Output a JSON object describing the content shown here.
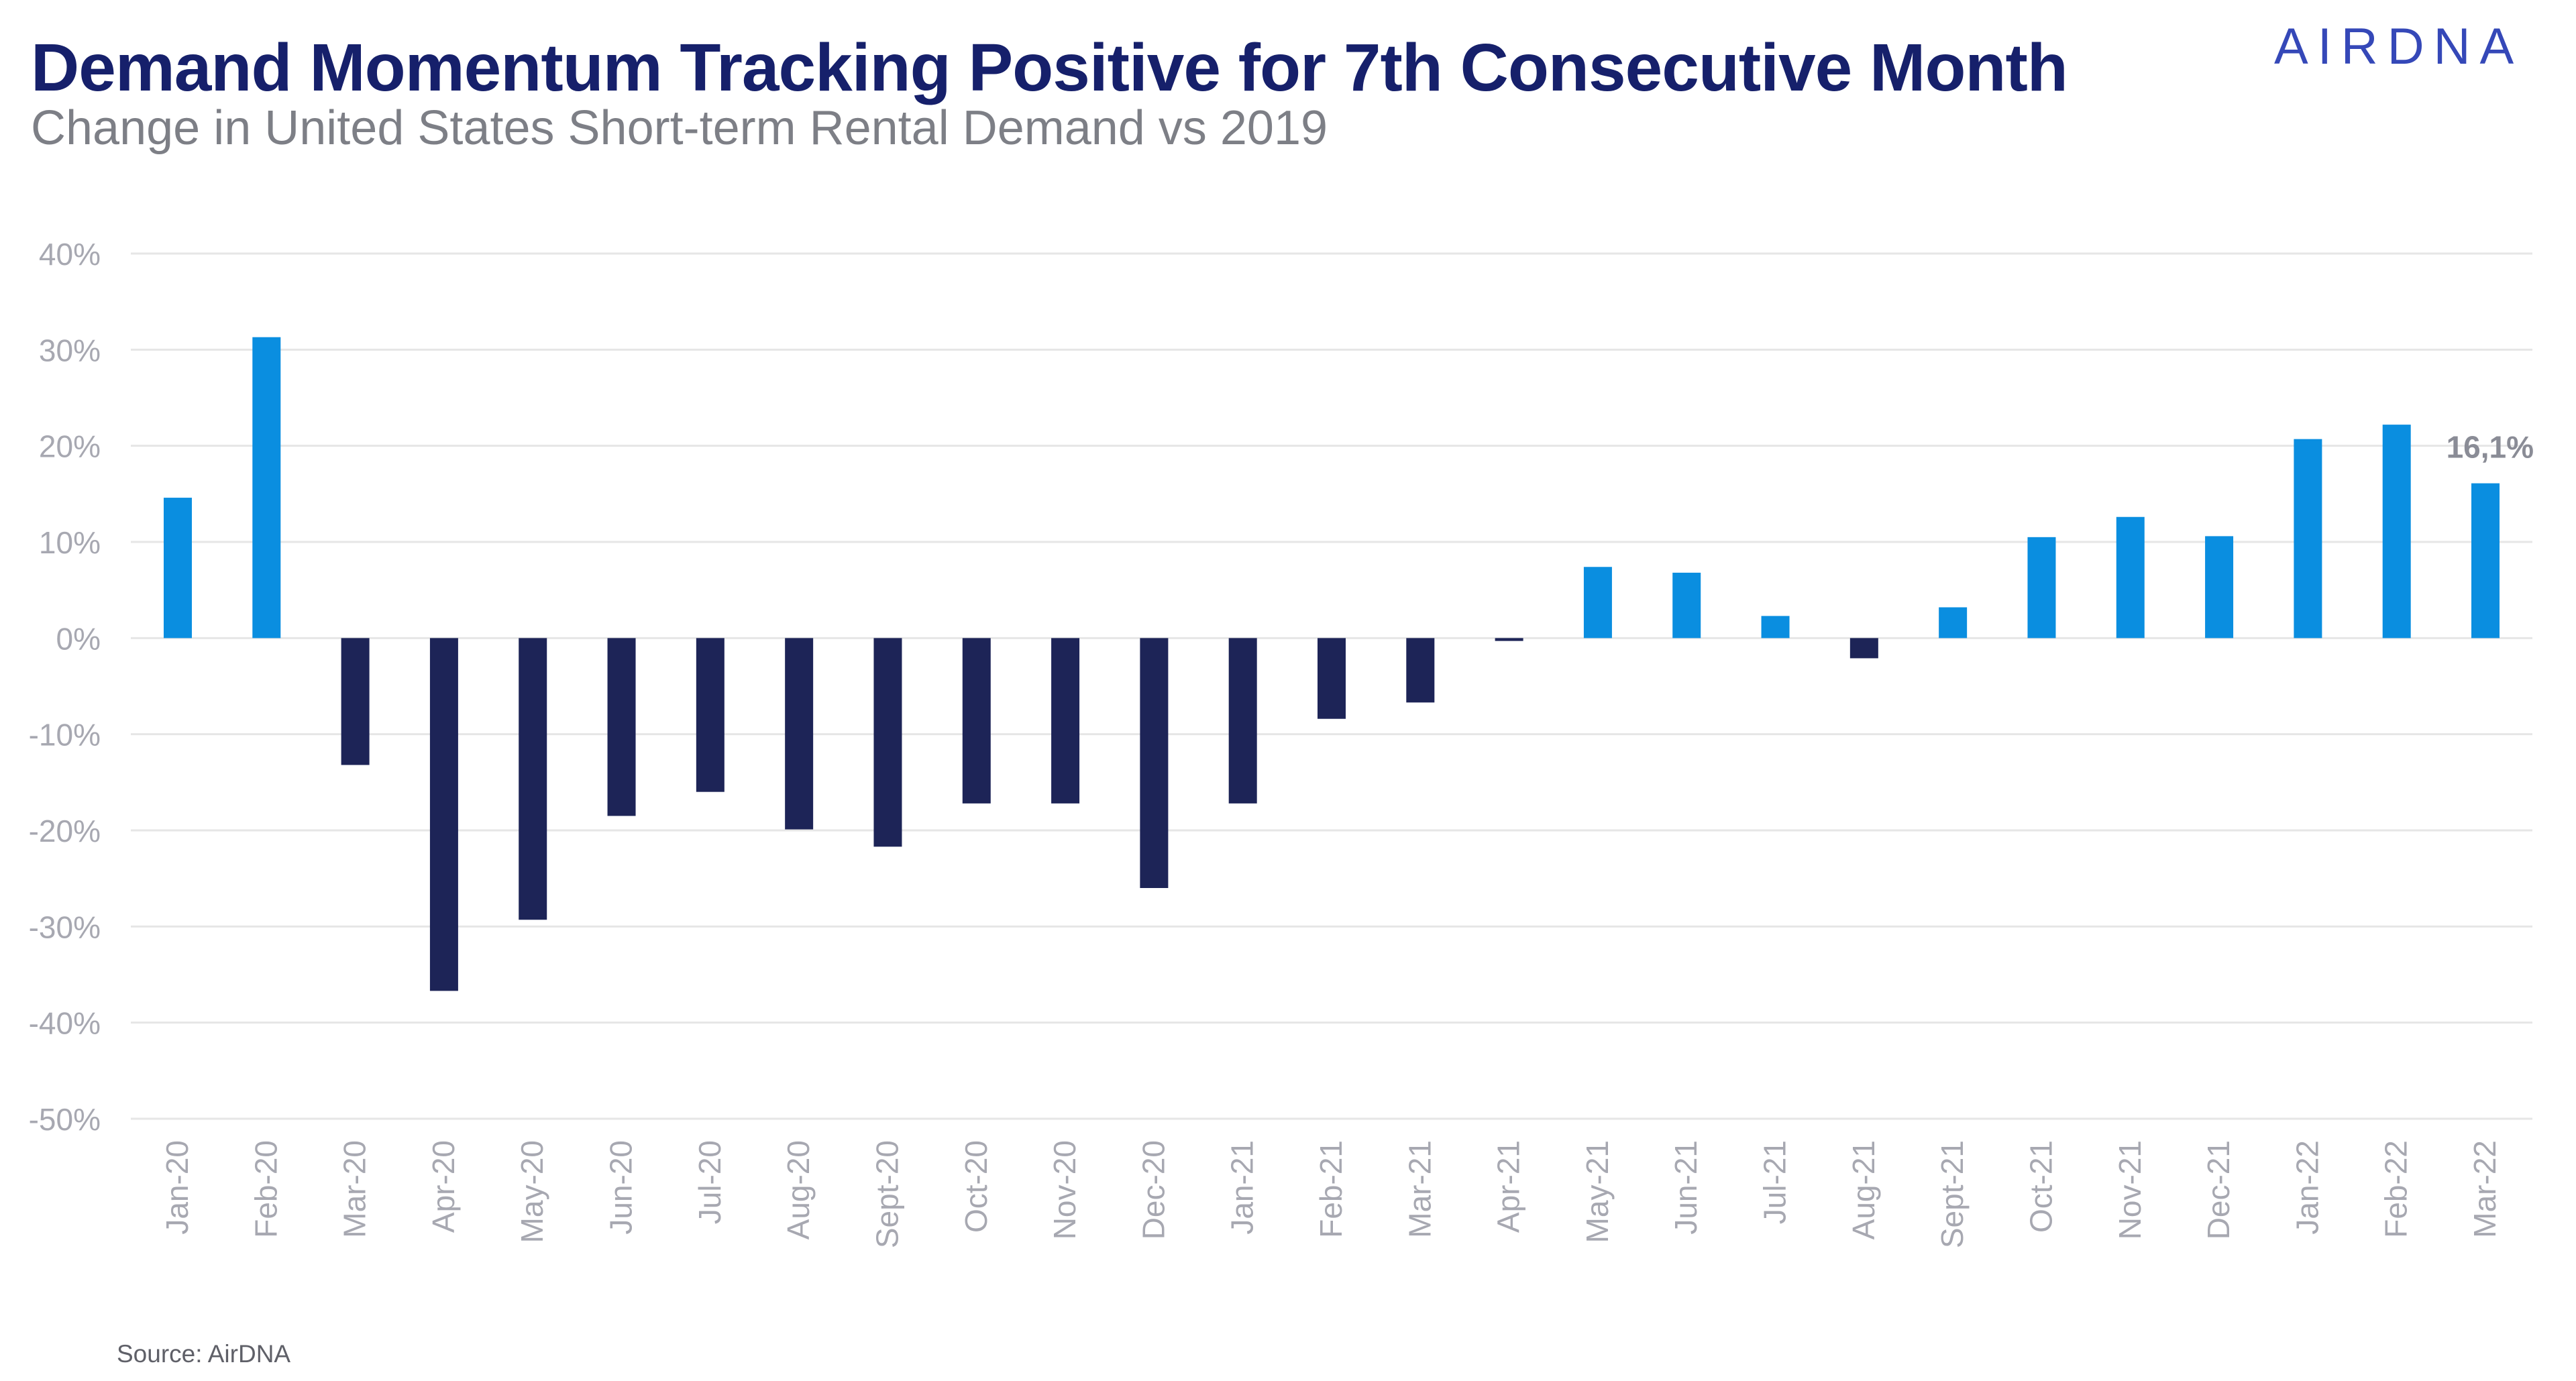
{
  "logo_text": "AIRDNA",
  "chart_data": {
    "type": "bar",
    "title": "Demand Momentum Tracking Positive for 7th Consecutive Month",
    "subtitle": "Change in United States Short-term Rental Demand vs 2019",
    "source": "Source: AirDNA",
    "categories": [
      "Jan-20",
      "Feb-20",
      "Mar-20",
      "Apr-20",
      "May-20",
      "Jun-20",
      "Jul-20",
      "Aug-20",
      "Sept-20",
      "Oct-20",
      "Nov-20",
      "Dec-20",
      "Jan-21",
      "Feb-21",
      "Mar-21",
      "Apr-21",
      "May-21",
      "Jun-21",
      "Jul-21",
      "Aug-21",
      "Sept-21",
      "Oct-21",
      "Nov-21",
      "Dec-21",
      "Jan-22",
      "Feb-22",
      "Mar-22"
    ],
    "values": [
      14.6,
      31.3,
      -13.2,
      -36.7,
      -29.3,
      -18.5,
      -16.0,
      -19.9,
      -21.7,
      -17.2,
      -17.2,
      -26.0,
      -17.2,
      -8.4,
      -6.7,
      -0.3,
      7.4,
      6.8,
      2.3,
      -2.1,
      3.2,
      10.5,
      12.6,
      10.6,
      20.7,
      22.2,
      16.1
    ],
    "ylim": [
      -50,
      40
    ],
    "yticks": [
      40,
      30,
      20,
      10,
      0,
      -10,
      -20,
      -30,
      -40,
      -50
    ],
    "ytick_labels": [
      "40%",
      "30%",
      "20%",
      "10%",
      "0%",
      "-10%",
      "-20%",
      "-30%",
      "-40%",
      "-50%"
    ],
    "annotation": {
      "category": "Mar-22",
      "text": "16,1%"
    },
    "grid": true,
    "legend": "none",
    "colors": {
      "positive": "#0a8ee0",
      "negative": "#1d2457",
      "grid": "#e6e6e6",
      "axis_text": "#a7a8b1",
      "annotation": "#8a8c96"
    }
  }
}
